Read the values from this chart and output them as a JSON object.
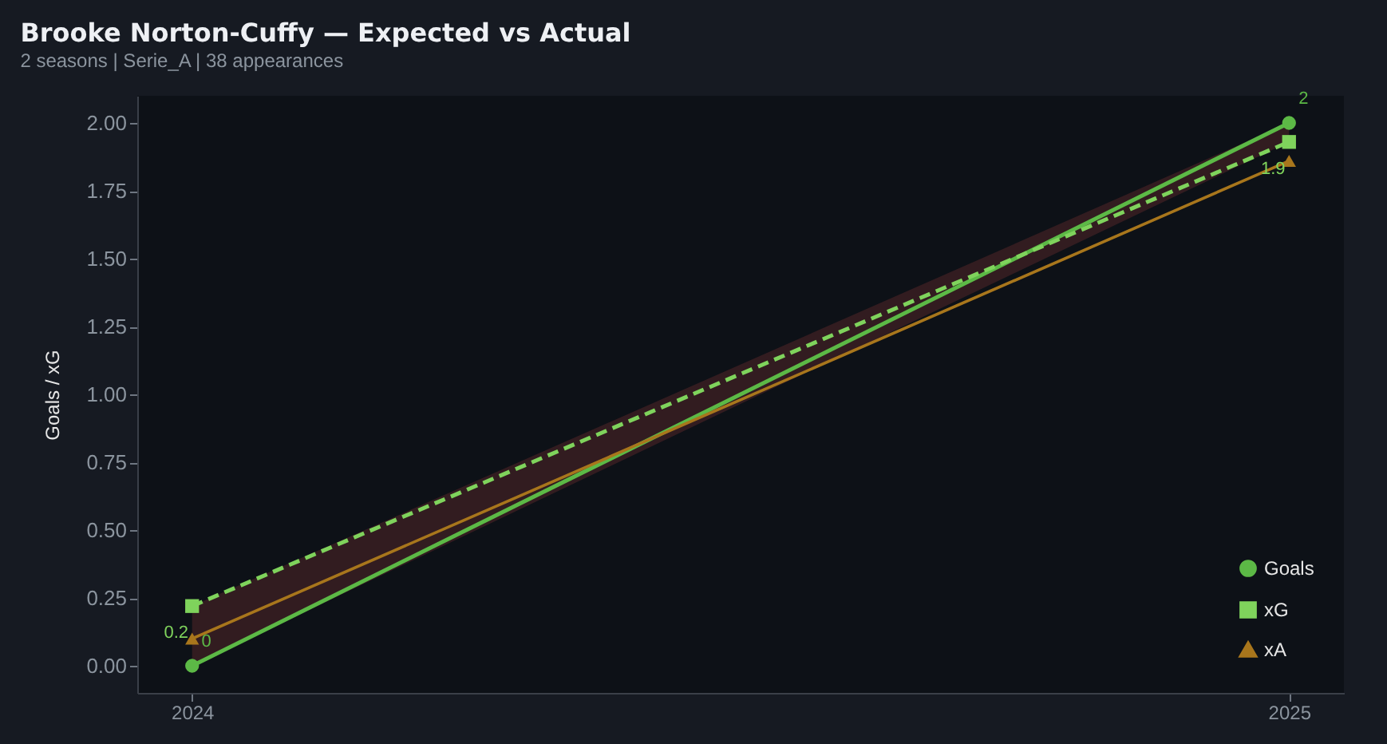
{
  "chart_data": {
    "type": "line",
    "title": "Brooke Norton-Cuffy — Expected vs Actual",
    "subtitle": "2 seasons | Serie_A | 38 appearances",
    "ylabel": "Goals / xG",
    "categories": [
      "2024",
      "2025"
    ],
    "series": [
      {
        "name": "Goals",
        "color": "#5cb946",
        "values": [
          0,
          2
        ],
        "marker": "circle",
        "line_style": "solid",
        "value_labels": [
          "0",
          "2"
        ]
      },
      {
        "name": "xG",
        "color": "#7fd35c",
        "values": [
          0.22,
          1.93
        ],
        "marker": "square",
        "line_style": "dashed",
        "value_labels": [
          "0.2",
          "1.9"
        ],
        "lower": [
          0,
          1.93
        ],
        "upper": [
          0.22,
          2
        ]
      },
      {
        "name": "xA",
        "color": "#a8761c",
        "values": [
          0.1,
          1.86
        ],
        "marker": "triangle",
        "line_style": "solid"
      }
    ],
    "ylim": [
      -0.1,
      2.1
    ],
    "yticks": [
      {
        "value": 0,
        "label": "0.00"
      },
      {
        "value": 0.25,
        "label": "0.25"
      },
      {
        "value": 0.5,
        "label": "0.50"
      },
      {
        "value": 0.75,
        "label": "0.75"
      },
      {
        "value": 1,
        "label": "1.00"
      },
      {
        "value": 1.25,
        "label": "1.25"
      },
      {
        "value": 1.5,
        "label": "1.50"
      },
      {
        "value": 1.75,
        "label": "1.75"
      },
      {
        "value": 2,
        "label": "2.00"
      }
    ],
    "grid": false,
    "legend": "bottom right"
  }
}
